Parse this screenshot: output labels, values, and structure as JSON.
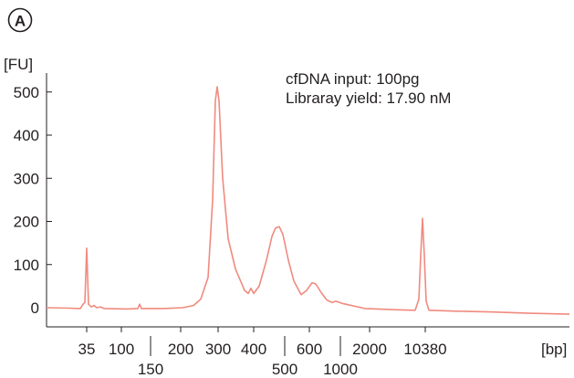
{
  "panel_label": "A",
  "chart_data": {
    "type": "line",
    "ylabel": "[FU]",
    "xlabel": "[bp]",
    "ylim": [
      -40,
      560
    ],
    "yticks": [
      0,
      100,
      200,
      300,
      400,
      500
    ],
    "xticks_upper": [
      "35",
      "100",
      "200",
      "300",
      "400",
      "600",
      "2000",
      "10380"
    ],
    "xticks_lower": [
      "150",
      "500",
      "1000"
    ],
    "annotations": [
      "cfDNA input: 100pg",
      "Libraray yield: 17.90 nM"
    ],
    "grid": false,
    "line_color": "#f08a7e",
    "series": [
      {
        "x": [
          "35",
          "100",
          "150",
          "200",
          "300",
          "400",
          "500",
          "600",
          "1000",
          "10380"
        ],
        "values": [
          138,
          3,
          8,
          0,
          512,
          42,
          188,
          58,
          15,
          207
        ]
      }
    ]
  }
}
